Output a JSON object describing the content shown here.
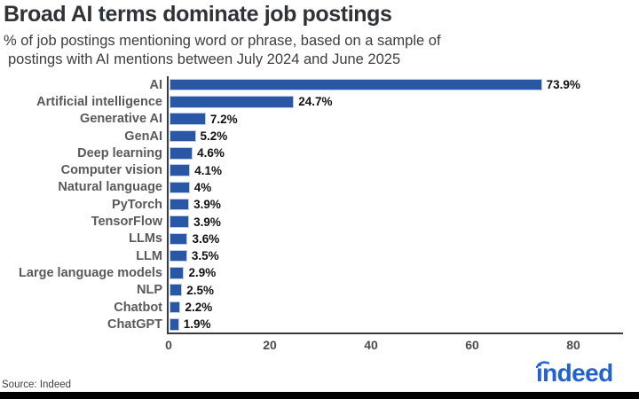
{
  "header": {
    "title": "Broad AI terms dominate job postings",
    "subtitle_line1": "% of job postings mentioning word or phrase, based on a sample of",
    "subtitle_line2": "postings with AI mentions between July 2024 and June 2025"
  },
  "chart_data": {
    "type": "bar",
    "orientation": "horizontal",
    "title": "Broad AI terms dominate job postings",
    "subtitle": "% of job postings mentioning word or phrase, based on a sample of postings with AI mentions between July 2024 and June 2025",
    "categories": [
      "AI",
      "Artificial intelligence",
      "Generative AI",
      "GenAI",
      "Deep learning",
      "Computer vision",
      "Natural language",
      "PyTorch",
      "TensorFlow",
      "LLMs",
      "LLM",
      "Large language models",
      "NLP",
      "Chatbot",
      "ChatGPT"
    ],
    "values": [
      73.9,
      24.7,
      7.2,
      5.2,
      4.6,
      4.1,
      4,
      3.9,
      3.9,
      3.6,
      3.5,
      2.9,
      2.5,
      2.2,
      1.9
    ],
    "value_labels": [
      "73.9%",
      "24.7%",
      "7.2%",
      "5.2%",
      "4.6%",
      "4.1%",
      "4%",
      "3.9%",
      "3.9%",
      "3.6%",
      "3.5%",
      "2.9%",
      "2.5%",
      "2.2%",
      "1.9%"
    ],
    "x_ticks": [
      "0",
      "20",
      "40",
      "60",
      "80"
    ],
    "x_tick_values": [
      0,
      20,
      40,
      60,
      80
    ],
    "xlim": [
      0,
      90
    ],
    "grid": false,
    "legend": false,
    "bar_color": "#2a57a5",
    "bar_edge_color": "#b9cce8",
    "axis_color": "#3b3b3b"
  },
  "footer": {
    "source": "Source: Indeed",
    "logo_text": "indeed",
    "logo_color": "#2161d1"
  }
}
